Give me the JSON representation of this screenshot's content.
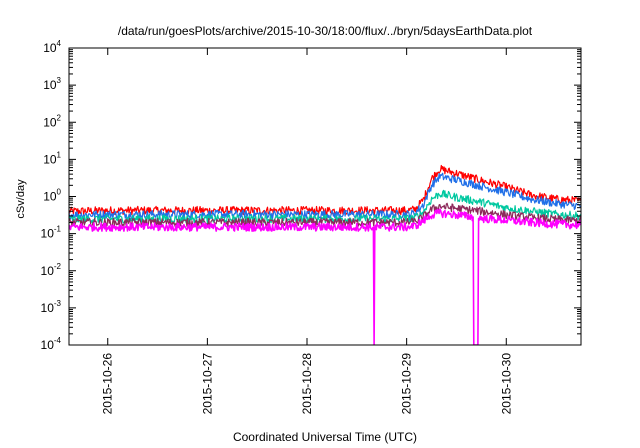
{
  "chart_data": {
    "type": "line",
    "title": "/data/run/goesPlots/archive/2015-10-30/18:00/flux/../bryn/5daysEarthData.plot",
    "xlabel": "Coordinated Universal Time (UTC)",
    "ylabel": "cSv/day",
    "y_scale": "log",
    "ylim": [
      0.0001,
      10000
    ],
    "xlim": [
      "2015-10-25 14:40",
      "2015-10-30 18:00"
    ],
    "grid": false,
    "legend": "none",
    "x_ticks": [
      "2015-10-26",
      "2015-10-27",
      "2015-10-28",
      "2015-10-29",
      "2015-10-30"
    ],
    "y_ticks": [
      {
        "base": "10",
        "exp": "-4",
        "value": 0.0001
      },
      {
        "base": "10",
        "exp": "-3",
        "value": 0.001
      },
      {
        "base": "10",
        "exp": "-2",
        "value": 0.01
      },
      {
        "base": "10",
        "exp": "-1",
        "value": 0.1
      },
      {
        "base": "10",
        "exp": "0",
        "value": 1
      },
      {
        "base": "10",
        "exp": "1",
        "value": 10
      },
      {
        "base": "10",
        "exp": "2",
        "value": 100
      },
      {
        "base": "10",
        "exp": "3",
        "value": 1000
      },
      {
        "base": "10",
        "exp": "4",
        "value": 10000
      }
    ],
    "series": [
      {
        "color": "#ff0000",
        "x": [
          "2015-10-25 14:40",
          "2015-10-26 00:00",
          "2015-10-27 00:00",
          "2015-10-28 00:00",
          "2015-10-28 12:00",
          "2015-10-29 00:00",
          "2015-10-29 02:00",
          "2015-10-29 04:00",
          "2015-10-29 06:00",
          "2015-10-29 08:00",
          "2015-10-29 12:00",
          "2015-10-29 18:00",
          "2015-10-30 00:00",
          "2015-10-30 06:00",
          "2015-10-30 12:00",
          "2015-10-30 18:00"
        ],
        "y": [
          0.4,
          0.42,
          0.42,
          0.42,
          0.42,
          0.42,
          0.45,
          0.8,
          3.0,
          5.5,
          4.2,
          2.7,
          1.8,
          1.1,
          0.85,
          0.75
        ]
      },
      {
        "color": "#1f6fe8",
        "x": [
          "2015-10-25 14:40",
          "2015-10-26 00:00",
          "2015-10-27 00:00",
          "2015-10-28 00:00",
          "2015-10-28 12:00",
          "2015-10-29 00:00",
          "2015-10-29 02:00",
          "2015-10-29 04:00",
          "2015-10-29 06:00",
          "2015-10-29 08:00",
          "2015-10-29 12:00",
          "2015-10-29 18:00",
          "2015-10-30 00:00",
          "2015-10-30 06:00",
          "2015-10-30 12:00",
          "2015-10-30 18:00"
        ],
        "y": [
          0.32,
          0.33,
          0.33,
          0.33,
          0.33,
          0.33,
          0.36,
          0.6,
          2.0,
          3.5,
          2.8,
          1.9,
          1.3,
          0.85,
          0.65,
          0.55
        ]
      },
      {
        "color": "#00c8a0",
        "x": [
          "2015-10-25 14:40",
          "2015-10-26 00:00",
          "2015-10-27 00:00",
          "2015-10-28 00:00",
          "2015-10-28 12:00",
          "2015-10-29 00:00",
          "2015-10-29 02:00",
          "2015-10-29 04:00",
          "2015-10-29 06:00",
          "2015-10-29 08:00",
          "2015-10-29 12:00",
          "2015-10-29 18:00",
          "2015-10-30 00:00",
          "2015-10-30 06:00",
          "2015-10-30 12:00",
          "2015-10-30 18:00"
        ],
        "y": [
          0.24,
          0.25,
          0.25,
          0.25,
          0.25,
          0.25,
          0.27,
          0.38,
          0.85,
          1.2,
          0.95,
          0.7,
          0.5,
          0.4,
          0.33,
          0.3
        ]
      },
      {
        "color": "#8c2a5a",
        "x": [
          "2015-10-25 14:40",
          "2015-10-26 00:00",
          "2015-10-27 00:00",
          "2015-10-28 00:00",
          "2015-10-28 12:00",
          "2015-10-29 00:00",
          "2015-10-29 02:00",
          "2015-10-29 04:00",
          "2015-10-29 06:00",
          "2015-10-29 08:00",
          "2015-10-29 12:00",
          "2015-10-29 18:00",
          "2015-10-30 00:00",
          "2015-10-30 06:00",
          "2015-10-30 12:00",
          "2015-10-30 18:00"
        ],
        "y": [
          0.2,
          0.2,
          0.2,
          0.2,
          0.2,
          0.2,
          0.21,
          0.28,
          0.45,
          0.55,
          0.48,
          0.4,
          0.32,
          0.27,
          0.24,
          0.22
        ]
      },
      {
        "color": "#ff00ff",
        "x": [
          "2015-10-25 14:40",
          "2015-10-26 00:00",
          "2015-10-27 00:00",
          "2015-10-28 00:00",
          "2015-10-28 12:00",
          "2015-10-28 16:00",
          "2015-10-28 16:10",
          "2015-10-28 16:20",
          "2015-10-29 00:00",
          "2015-10-29 02:00",
          "2015-10-29 04:00",
          "2015-10-29 06:00",
          "2015-10-29 08:00",
          "2015-10-29 12:00",
          "2015-10-29 16:00",
          "2015-10-29 16:10",
          "2015-10-29 17:10",
          "2015-10-29 17:20",
          "2015-10-30 00:00",
          "2015-10-30 06:00",
          "2015-10-30 12:00",
          "2015-10-30 18:00"
        ],
        "y": [
          0.15,
          0.15,
          0.15,
          0.15,
          0.15,
          0.15,
          0.0001,
          0.15,
          0.15,
          0.16,
          0.22,
          0.32,
          0.36,
          0.32,
          0.28,
          0.0001,
          0.0001,
          0.26,
          0.23,
          0.2,
          0.18,
          0.17
        ]
      }
    ]
  }
}
